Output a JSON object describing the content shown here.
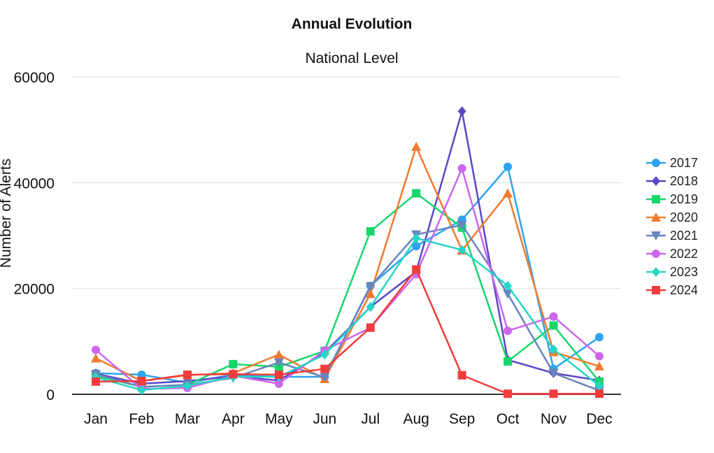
{
  "chart_data": {
    "type": "line",
    "title": "Annual Evolution",
    "subtitle": "National Level",
    "xlabel": "",
    "ylabel": "Number of Alerts",
    "ylim": [
      0,
      60000
    ],
    "yticks": [
      0,
      20000,
      40000,
      60000
    ],
    "grid": true,
    "legend_position": "right",
    "categories": [
      "Jan",
      "Feb",
      "Mar",
      "Apr",
      "May",
      "Jun",
      "Jul",
      "Aug",
      "Sep",
      "Oct",
      "Nov",
      "Dec"
    ],
    "series": [
      {
        "name": "2017",
        "color": "#2ea3f2",
        "marker": "circle",
        "values": [
          4000,
          3700,
          2200,
          3700,
          3300,
          3300,
          20500,
          28000,
          33000,
          43000,
          4800,
          10800
        ]
      },
      {
        "name": "2018",
        "color": "#5b47c6",
        "marker": "diamond",
        "values": [
          3900,
          2000,
          2500,
          3400,
          2600,
          7900,
          16500,
          23200,
          53500,
          6500,
          4000,
          2600
        ]
      },
      {
        "name": "2019",
        "color": "#17d66c",
        "marker": "square",
        "values": [
          3500,
          1400,
          1800,
          5700,
          5200,
          8200,
          30800,
          38000,
          31500,
          6200,
          13000,
          2400
        ]
      },
      {
        "name": "2020",
        "color": "#f07b30",
        "marker": "triangle",
        "values": [
          6800,
          2500,
          3600,
          4000,
          7500,
          2900,
          19000,
          46800,
          27200,
          38000,
          8000,
          5300
        ]
      },
      {
        "name": "2021",
        "color": "#6a84bd",
        "marker": "triangle-down",
        "values": [
          3800,
          1400,
          1800,
          3100,
          6000,
          3200,
          20400,
          30200,
          32000,
          19000,
          4000,
          700
        ]
      },
      {
        "name": "2022",
        "color": "#cc66ee",
        "marker": "circle",
        "values": [
          8400,
          1000,
          1200,
          3500,
          2000,
          8300,
          12600,
          22700,
          42700,
          12000,
          14700,
          7200
        ]
      },
      {
        "name": "2023",
        "color": "#25d6c6",
        "marker": "diamond",
        "values": [
          3200,
          800,
          1600,
          3300,
          3300,
          7500,
          16500,
          29500,
          27300,
          20500,
          8500,
          1600
        ]
      },
      {
        "name": "2024",
        "color": "#f03c3c",
        "marker": "square",
        "values": [
          2400,
          2500,
          3700,
          3800,
          3700,
          4800,
          12600,
          23600,
          3600,
          100,
          100,
          100
        ]
      }
    ]
  }
}
